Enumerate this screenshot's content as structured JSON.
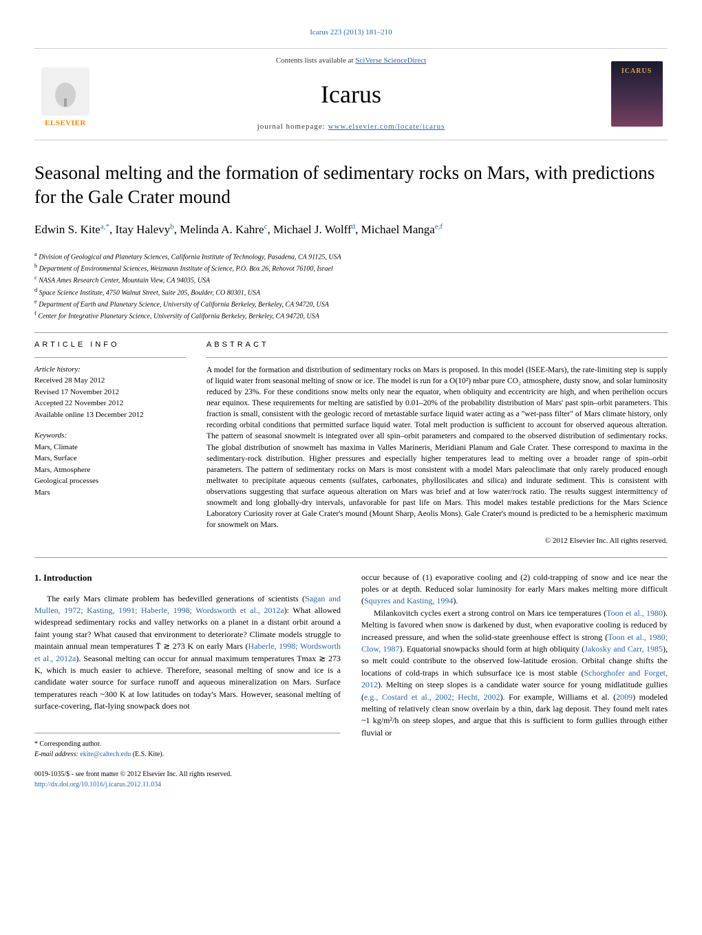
{
  "header": {
    "citation": "Icarus 223 (2013) 181–210"
  },
  "banner": {
    "publisher": "ELSEVIER",
    "contents_prefix": "Contents lists available at ",
    "contents_link": "SciVerse ScienceDirect",
    "journal_name": "Icarus",
    "homepage_label": "journal homepage: ",
    "homepage_url": "www.elsevier.com/locate/icarus",
    "cover_text": "ICARUS"
  },
  "article": {
    "title": "Seasonal melting and the formation of sedimentary rocks on Mars, with predictions for the Gale Crater mound",
    "authors_html": "Edwin S. Kite<sup>a,*</sup>, Itay Halevy<sup>b</sup>, Melinda A. Kahre<sup>c</sup>, Michael J. Wolff<sup>d</sup>, Michael Manga<sup>e,f</sup>"
  },
  "affiliations": [
    "Division of Geological and Planetary Sciences, California Institute of Technology, Pasadena, CA 91125, USA",
    "Department of Environmental Sciences, Weizmann Institute of Science, P.O. Box 26, Rehovot 76100, Israel",
    "NASA Ames Research Center, Mountain View, CA 94035, USA",
    "Space Science Institute, 4750 Walnut Street, Suite 205, Boulder, CO 80301, USA",
    "Department of Earth and Planetary Science, University of California Berkeley, Berkeley, CA 94720, USA",
    "Center for Integrative Planetary Science, University of California Berkeley, Berkeley, CA 94720, USA"
  ],
  "affiliation_markers": [
    "a",
    "b",
    "c",
    "d",
    "e",
    "f"
  ],
  "info": {
    "header": "ARTICLE INFO",
    "history_label": "Article history:",
    "history": [
      "Received 28 May 2012",
      "Revised 17 November 2012",
      "Accepted 22 November 2012",
      "Available online 13 December 2012"
    ],
    "keywords_label": "Keywords:",
    "keywords": [
      "Mars, Climate",
      "Mars, Surface",
      "Mars, Atmosphere",
      "Geological processes",
      "Mars"
    ]
  },
  "abstract": {
    "header": "ABSTRACT",
    "text": "A model for the formation and distribution of sedimentary rocks on Mars is proposed. In this model (ISEE-Mars), the rate-limiting step is supply of liquid water from seasonal melting of snow or ice. The model is run for a O(10²) mbar pure CO₂ atmosphere, dusty snow, and solar luminosity reduced by 23%. For these conditions snow melts only near the equator, when obliquity and eccentricity are high, and when perihelion occurs near equinox. These requirements for melting are satisfied by 0.01–20% of the probability distribution of Mars' past spin–orbit parameters. This fraction is small, consistent with the geologic record of metastable surface liquid water acting as a \"wet-pass filter\" of Mars climate history, only recording orbital conditions that permitted surface liquid water. Total melt production is sufficient to account for observed aqueous alteration. The pattern of seasonal snowmelt is integrated over all spin–orbit parameters and compared to the observed distribution of sedimentary rocks. The global distribution of snowmelt has maxima in Valles Marineris, Meridiani Planum and Gale Crater. These correspond to maxima in the sedimentary-rock distribution. Higher pressures and especially higher temperatures lead to melting over a broader range of spin–orbit parameters. The pattern of sedimentary rocks on Mars is most consistent with a model Mars paleoclimate that only rarely produced enough meltwater to precipitate aqueous cements (sulfates, carbonates, phyllosilicates and silica) and indurate sediment. This is consistent with observations suggesting that surface aqueous alteration on Mars was brief and at low water/rock ratio. The results suggest intermittency of snowmelt and long globally-dry intervals, unfavorable for past life on Mars. This model makes testable predictions for the Mars Science Laboratory Curiosity rover at Gale Crater's mound (Mount Sharp, Aeolis Mons). Gale Crater's mound is predicted to be a hemispheric maximum for snowmelt on Mars.",
    "copyright": "© 2012 Elsevier Inc. All rights reserved."
  },
  "body": {
    "section_title": "1. Introduction",
    "col1_p1": "The early Mars climate problem has bedevilled generations of scientists (Sagan and Mullen, 1972; Kasting, 1991; Haberle, 1998; Wordsworth et al., 2012a): What allowed widespread sedimentary rocks and valley networks on a planet in a distant orbit around a faint young star? What caused that environment to deteriorate? Climate models struggle to maintain annual mean temperatures T̄ ≳ 273 K on early Mars (Haberle, 1998; Wordsworth et al., 2012a). Seasonal melting can occur for annual maximum temperatures Tmax ≳ 273 K, which is much easier to achieve. Therefore, seasonal melting of snow and ice is a candidate water source for surface runoff and aqueous mineralization on Mars. Surface temperatures reach ~300 K at low latitudes on today's Mars. However, seasonal melting of surface-covering, flat-lying snowpack does not",
    "col2_p1": "occur because of (1) evaporative cooling and (2) cold-trapping of snow and ice near the poles or at depth. Reduced solar luminosity for early Mars makes melting more difficult (Squyres and Kasting, 1994).",
    "col2_p2": "Milankovitch cycles exert a strong control on Mars ice temperatures (Toon et al., 1980). Melting is favored when snow is darkened by dust, when evaporative cooling is reduced by increased pressure, and when the solid-state greenhouse effect is strong (Toon et al., 1980; Clow, 1987). Equatorial snowpacks should form at high obliquity (Jakosky and Carr, 1985), so melt could contribute to the observed low-latitude erosion. Orbital change shifts the locations of cold-traps in which subsurface ice is most stable (Schorghofer and Forget, 2012). Melting on steep slopes is a candidate water source for young midlatitude gullies (e.g., Costard et al., 2002; Hecht, 2002). For example, Williams et al. (2009) modeled melting of relatively clean snow overlain by a thin, dark lag deposit. They found melt rates ~1 kg/m²/h on steep slopes, and argue that this is sufficient to form gullies through either fluvial or"
  },
  "footer": {
    "corresp_label": "* Corresponding author.",
    "email_label": "E-mail address: ",
    "email": "ekite@caltech.edu",
    "email_name": " (E.S. Kite).",
    "issn": "0019-1035/$ - see front matter © 2012 Elsevier Inc. All rights reserved.",
    "doi": "http://dx.doi.org/10.1016/j.icarus.2012.11.034"
  },
  "colors": {
    "link": "#2864a8",
    "elsevier_orange": "#ff8200",
    "text": "#000000",
    "background": "#ffffff"
  }
}
